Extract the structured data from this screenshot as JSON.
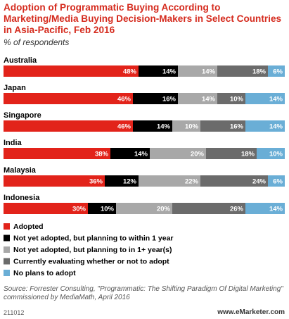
{
  "chart_data": {
    "type": "stacked-bar",
    "title": "Adoption of Programmatic Buying According to Marketing/Media Buying Decision-Makers in Select Countries in Asia-Pacific, Feb 2016",
    "subtitle": "% of respondents",
    "categories": [
      "Australia",
      "Japan",
      "Singapore",
      "India",
      "Malaysia",
      "Indonesia"
    ],
    "series": [
      {
        "name": "Adopted",
        "color": "#e2231a",
        "values": [
          48,
          46,
          46,
          38,
          36,
          30
        ],
        "value_labels": [
          "48%",
          "46%",
          "46%",
          "38%",
          "36%",
          "30%"
        ]
      },
      {
        "name": "Not yet adopted, but planning to within 1 year",
        "color": "#000000",
        "values": [
          14,
          16,
          14,
          14,
          12,
          10
        ],
        "value_labels": [
          "14%",
          "16%",
          "14%",
          "14%",
          "12%",
          "10%"
        ]
      },
      {
        "name": "Not yet adopted, but planning to in 1+ year(s)",
        "color": "#a8a8a8",
        "values": [
          14,
          14,
          10,
          20,
          22,
          20
        ],
        "value_labels": [
          "14%",
          "14%",
          "10%",
          "20%",
          "22%",
          "20%"
        ]
      },
      {
        "name": "Currently evaluating whether or not to adopt",
        "color": "#6b6b6b",
        "values": [
          18,
          10,
          16,
          18,
          24,
          26
        ],
        "value_labels": [
          "18%",
          "10%",
          "16%",
          "18%",
          "24%",
          "26%"
        ]
      },
      {
        "name": "No plans to adopt",
        "color": "#6aaed6",
        "values": [
          6,
          14,
          14,
          10,
          6,
          14
        ],
        "value_labels": [
          "6%",
          "14%",
          "14%",
          "10%",
          "6%",
          "14%"
        ]
      }
    ],
    "source": "Source: Forrester Consulting, \"Programmatic: The Shifting Paradigm Of Digital Marketing\" commissioned by MediaMath, April 2016",
    "chart_id": "211012",
    "credit": "www.eMarketer.com"
  }
}
